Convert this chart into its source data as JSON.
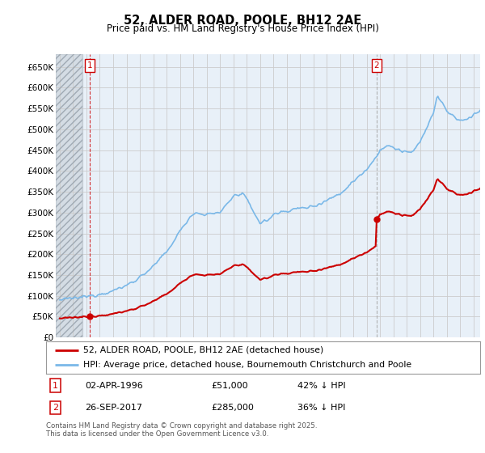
{
  "title": "52, ALDER ROAD, POOLE, BH12 2AE",
  "subtitle": "Price paid vs. HM Land Registry's House Price Index (HPI)",
  "ylim": [
    0,
    680000
  ],
  "yticks": [
    0,
    50000,
    100000,
    150000,
    200000,
    250000,
    300000,
    350000,
    400000,
    450000,
    500000,
    550000,
    600000,
    650000
  ],
  "ytick_labels": [
    "£0",
    "£50K",
    "£100K",
    "£150K",
    "£200K",
    "£250K",
    "£300K",
    "£350K",
    "£400K",
    "£450K",
    "£500K",
    "£550K",
    "£600K",
    "£650K"
  ],
  "sale1_date": 1996.25,
  "sale1_price": 51000,
  "sale2_date": 2017.73,
  "sale2_price": 285000,
  "hpi_color": "#7ab8e8",
  "sale_color": "#cc0000",
  "grid_color": "#cccccc",
  "bg_color": "#ffffff",
  "plot_bg_color": "#e8f0f8",
  "hatch_color": "#c8d0d8",
  "legend_label1": "52, ALDER ROAD, POOLE, BH12 2AE (detached house)",
  "legend_label2": "HPI: Average price, detached house, Bournemouth Christchurch and Poole",
  "note1_label": "1",
  "note1_date": "02-APR-1996",
  "note1_price": "£51,000",
  "note1_hpi": "42% ↓ HPI",
  "note2_label": "2",
  "note2_date": "26-SEP-2017",
  "note2_price": "£285,000",
  "note2_hpi": "36% ↓ HPI",
  "footer": "Contains HM Land Registry data © Crown copyright and database right 2025.\nThis data is licensed under the Open Government Licence v3.0.",
  "xlim_left": 1993.7,
  "xlim_right": 2025.5,
  "hatch_end": 1995.7
}
